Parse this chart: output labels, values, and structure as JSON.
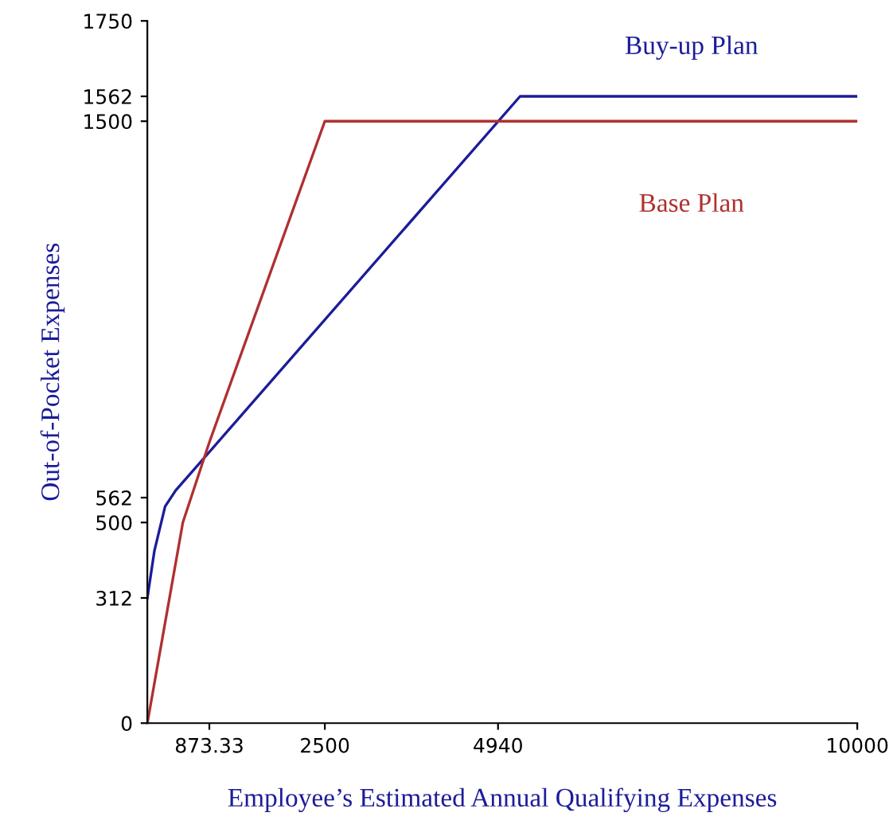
{
  "chart_data": {
    "type": "line",
    "xlabel": "Employee’s Estimated Annual Qualifying Expenses",
    "ylabel": "Out-of-Pocket Expenses",
    "series": [
      {
        "name": "Buy-up Plan",
        "color": "#1c1c9a",
        "x": [
          0,
          100,
          250,
          400,
          5250,
          10000
        ],
        "values": [
          312,
          430,
          540,
          580,
          1562,
          1562
        ]
      },
      {
        "name": "Base Plan",
        "color": "#b03030",
        "x": [
          0,
          500,
          873.33,
          2500,
          10000
        ],
        "values": [
          0,
          500,
          700,
          1500,
          1500
        ]
      }
    ],
    "xlim": [
      0,
      10000
    ],
    "ylim": [
      0,
      1750
    ],
    "xticks": [
      873.33,
      2500,
      4940,
      10000
    ],
    "yticks": [
      0,
      312,
      500,
      562,
      1500,
      1562,
      1750
    ],
    "grid": false,
    "legend": false
  }
}
